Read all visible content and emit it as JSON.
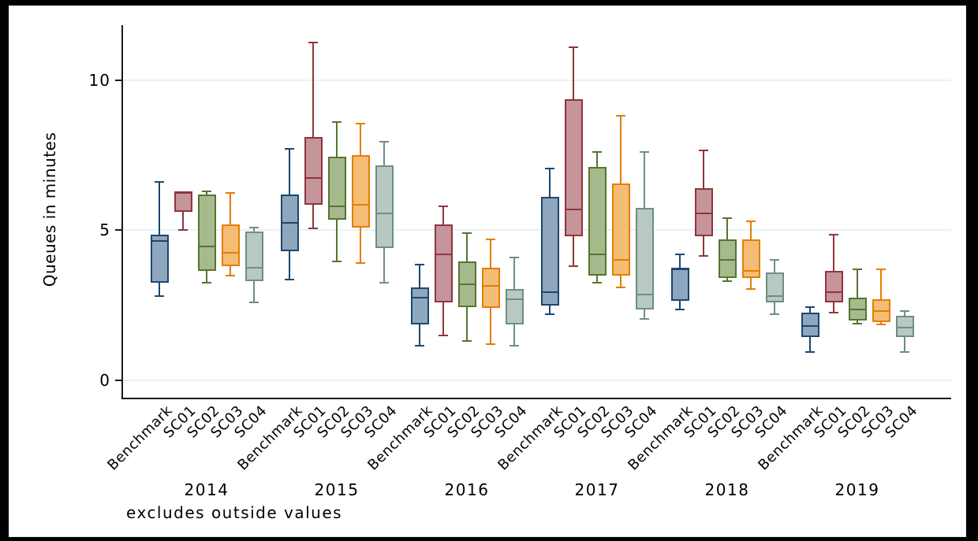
{
  "frame": {
    "background": "#000000",
    "canvas_background": "#ffffff"
  },
  "chart_data": {
    "type": "box",
    "title": "",
    "ylabel": "Queues in minutes",
    "xlabel": "",
    "note": "excludes outside values",
    "yticks": [
      0,
      5,
      10
    ],
    "ylim": [
      0,
      11.7
    ],
    "grid": "horizontal",
    "legend": "none",
    "series": [
      "Benchmark",
      "SC01",
      "SC02",
      "SC03",
      "SC04"
    ],
    "series_colors": [
      {
        "name": "Benchmark",
        "stroke": "#1a476f",
        "fill": "#8fa6bf"
      },
      {
        "name": "SC01",
        "stroke": "#90353b",
        "fill": "#c6949b"
      },
      {
        "name": "SC02",
        "stroke": "#55752f",
        "fill": "#a7ba8e"
      },
      {
        "name": "SC03",
        "stroke": "#e37e00",
        "fill": "#f4bd75"
      },
      {
        "name": "SC04",
        "stroke": "#6e8e84",
        "fill": "#b8c9c1"
      }
    ],
    "groups": [
      {
        "label": "2014",
        "boxes": [
          {
            "series": "Benchmark",
            "low": 2.8,
            "q1": 3.25,
            "median": 4.65,
            "q3": 4.85,
            "high": 6.6
          },
          {
            "series": "SC01",
            "low": 5.0,
            "q1": 5.6,
            "median": 6.25,
            "q3": 6.3,
            "high": 6.3
          },
          {
            "series": "SC02",
            "low": 3.25,
            "q1": 3.65,
            "median": 4.45,
            "q3": 6.2,
            "high": 6.3
          },
          {
            "series": "SC03",
            "low": 3.5,
            "q1": 3.8,
            "median": 4.25,
            "q3": 5.2,
            "high": 6.25
          },
          {
            "series": "SC04",
            "low": 2.6,
            "q1": 3.3,
            "median": 3.75,
            "q3": 4.95,
            "high": 5.1
          }
        ]
      },
      {
        "label": "2015",
        "boxes": [
          {
            "series": "Benchmark",
            "low": 3.35,
            "q1": 4.3,
            "median": 5.25,
            "q3": 6.2,
            "high": 7.7
          },
          {
            "series": "SC01",
            "low": 5.05,
            "q1": 5.85,
            "median": 6.75,
            "q3": 8.1,
            "high": 11.25
          },
          {
            "series": "SC02",
            "low": 3.95,
            "q1": 5.35,
            "median": 5.8,
            "q3": 7.45,
            "high": 8.6
          },
          {
            "series": "SC03",
            "low": 3.9,
            "q1": 5.1,
            "median": 5.85,
            "q3": 7.5,
            "high": 8.55
          },
          {
            "series": "SC04",
            "low": 3.25,
            "q1": 4.4,
            "median": 5.55,
            "q3": 7.15,
            "high": 7.95
          }
        ]
      },
      {
        "label": "2016",
        "boxes": [
          {
            "series": "Benchmark",
            "low": 1.15,
            "q1": 1.85,
            "median": 2.75,
            "q3": 3.1,
            "high": 3.85
          },
          {
            "series": "SC01",
            "low": 1.5,
            "q1": 2.6,
            "median": 4.2,
            "q3": 5.2,
            "high": 5.8
          },
          {
            "series": "SC02",
            "low": 1.3,
            "q1": 2.45,
            "median": 3.2,
            "q3": 3.95,
            "high": 4.9
          },
          {
            "series": "SC03",
            "low": 1.2,
            "q1": 2.4,
            "median": 3.15,
            "q3": 3.75,
            "high": 4.7
          },
          {
            "series": "SC04",
            "low": 1.15,
            "q1": 1.85,
            "median": 2.7,
            "q3": 3.05,
            "high": 4.1
          }
        ]
      },
      {
        "label": "2017",
        "boxes": [
          {
            "series": "Benchmark",
            "low": 2.2,
            "q1": 2.5,
            "median": 2.95,
            "q3": 6.1,
            "high": 7.05
          },
          {
            "series": "SC01",
            "low": 3.8,
            "q1": 4.8,
            "median": 5.7,
            "q3": 9.35,
            "high": 11.1
          },
          {
            "series": "SC02",
            "low": 3.25,
            "q1": 3.5,
            "median": 4.2,
            "q3": 7.1,
            "high": 7.6
          },
          {
            "series": "SC03",
            "low": 3.1,
            "q1": 3.5,
            "median": 4.0,
            "q3": 6.55,
            "high": 8.8
          },
          {
            "series": "SC04",
            "low": 2.05,
            "q1": 2.35,
            "median": 2.85,
            "q3": 5.75,
            "high": 7.6
          }
        ]
      },
      {
        "label": "2018",
        "boxes": [
          {
            "series": "Benchmark",
            "low": 2.35,
            "q1": 2.65,
            "median": 3.7,
            "q3": 3.75,
            "high": 4.2
          },
          {
            "series": "SC01",
            "low": 4.15,
            "q1": 4.8,
            "median": 5.55,
            "q3": 6.4,
            "high": 7.65
          },
          {
            "series": "SC02",
            "low": 3.3,
            "q1": 3.4,
            "median": 4.0,
            "q3": 4.7,
            "high": 5.4
          },
          {
            "series": "SC03",
            "low": 3.05,
            "q1": 3.4,
            "median": 3.65,
            "q3": 4.7,
            "high": 5.3
          },
          {
            "series": "SC04",
            "low": 2.2,
            "q1": 2.6,
            "median": 2.8,
            "q3": 3.6,
            "high": 4.0
          }
        ]
      },
      {
        "label": "2019",
        "boxes": [
          {
            "series": "Benchmark",
            "low": 0.95,
            "q1": 1.45,
            "median": 1.8,
            "q3": 2.25,
            "high": 2.45
          },
          {
            "series": "SC01",
            "low": 2.25,
            "q1": 2.6,
            "median": 2.95,
            "q3": 3.65,
            "high": 4.85
          },
          {
            "series": "SC02",
            "low": 1.9,
            "q1": 2.0,
            "median": 2.35,
            "q3": 2.75,
            "high": 3.7
          },
          {
            "series": "SC03",
            "low": 1.85,
            "q1": 1.95,
            "median": 2.3,
            "q3": 2.7,
            "high": 3.7
          },
          {
            "series": "SC04",
            "low": 0.95,
            "q1": 1.45,
            "median": 1.75,
            "q3": 2.15,
            "high": 2.3
          }
        ]
      }
    ]
  }
}
